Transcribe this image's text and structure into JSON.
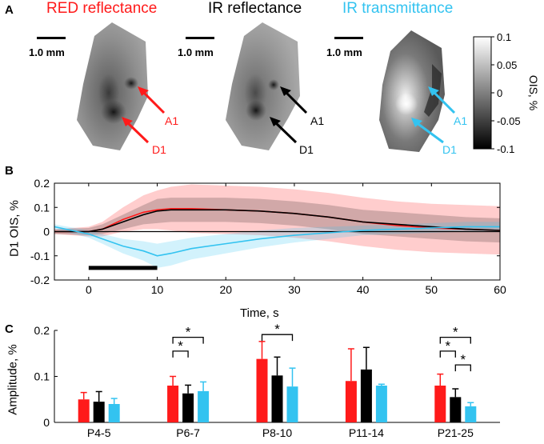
{
  "panelA": {
    "label": "A",
    "scale_text": "1.0 mm",
    "images": [
      {
        "title": "RED reflectance",
        "color": "#ff1a1a",
        "arrow_labels": [
          "A1",
          "D1"
        ]
      },
      {
        "title": "IR reflectance",
        "color": "#000000",
        "arrow_labels": [
          "A1",
          "D1"
        ]
      },
      {
        "title": "IR transmittance",
        "color": "#33c3f0",
        "arrow_labels": [
          "A1",
          "D1"
        ]
      }
    ],
    "colorbar": {
      "label": "OIS, %",
      "ticks": [
        "0.1",
        "0.05",
        "0",
        "-0.05",
        "-0.1"
      ],
      "range": [
        -0.1,
        0.1
      ]
    }
  },
  "colors": {
    "red": "#ff1a1a",
    "black": "#000000",
    "cyan": "#33c3f0"
  },
  "chart_data": [
    {
      "panel_label": "B",
      "type": "line",
      "xlabel": "Time, s",
      "ylabel": "D1 OIS, %",
      "xlim": [
        -5,
        60
      ],
      "ylim": [
        -0.2,
        0.2
      ],
      "xticks": [
        0,
        10,
        20,
        30,
        40,
        50,
        60
      ],
      "yticks": [
        -0.2,
        -0.1,
        0,
        0.1,
        0.2
      ],
      "ytick_labels": [
        "-0.2",
        "-0.1",
        "0",
        "0.1",
        "0.2"
      ],
      "stimulus_bar": [
        0,
        10
      ],
      "x": [
        -5,
        0,
        2,
        5,
        8,
        10,
        12,
        15,
        20,
        25,
        30,
        35,
        40,
        45,
        50,
        55,
        60
      ],
      "series": [
        {
          "name": "RED reflectance",
          "color": "#ff1a1a",
          "values": [
            0,
            0,
            0.01,
            0.05,
            0.08,
            0.09,
            0.095,
            0.095,
            0.09,
            0.085,
            0.075,
            0.06,
            0.04,
            0.025,
            0.015,
            0.01,
            0.005
          ],
          "err": [
            0.01,
            0.02,
            0.03,
            0.05,
            0.07,
            0.08,
            0.09,
            0.1,
            0.1,
            0.1,
            0.1,
            0.1,
            0.1,
            0.1,
            0.1,
            0.1,
            0.1
          ]
        },
        {
          "name": "IR reflectance",
          "color": "#000000",
          "values": [
            0,
            0,
            0.01,
            0.04,
            0.07,
            0.085,
            0.09,
            0.09,
            0.09,
            0.085,
            0.075,
            0.06,
            0.04,
            0.03,
            0.02,
            0.01,
            0.005
          ],
          "err": [
            0.01,
            0.015,
            0.02,
            0.03,
            0.04,
            0.05,
            0.05,
            0.05,
            0.05,
            0.05,
            0.05,
            0.05,
            0.05,
            0.05,
            0.05,
            0.05,
            0.05
          ]
        },
        {
          "name": "IR transmittance",
          "color": "#33c3f0",
          "values": [
            0.02,
            -0.01,
            -0.03,
            -0.06,
            -0.08,
            -0.1,
            -0.09,
            -0.07,
            -0.05,
            -0.03,
            -0.015,
            -0.005,
            0.005,
            0.01,
            0.015,
            0.02,
            0.02
          ],
          "err": [
            0.01,
            0.015,
            0.02,
            0.03,
            0.04,
            0.05,
            0.05,
            0.045,
            0.04,
            0.035,
            0.03,
            0.025,
            0.02,
            0.02,
            0.02,
            0.02,
            0.02
          ]
        }
      ]
    },
    {
      "panel_label": "C",
      "type": "bar",
      "xlabel": "",
      "ylabel": "Amplitude, %",
      "ylim": [
        0,
        0.2
      ],
      "yticks": [
        0,
        0.1,
        0.2
      ],
      "ytick_labels": [
        "0",
        "0.1",
        "0.2"
      ],
      "categories": [
        "P4-5",
        "P6-7",
        "P8-10",
        "P11-14",
        "P21-25"
      ],
      "series": [
        {
          "name": "RED reflectance",
          "color": "#ff1a1a",
          "values": [
            0.05,
            0.08,
            0.138,
            0.09,
            0.08
          ],
          "err": [
            0.015,
            0.02,
            0.038,
            0.07,
            0.025
          ]
        },
        {
          "name": "IR reflectance",
          "color": "#000000",
          "values": [
            0.045,
            0.063,
            0.102,
            0.115,
            0.055
          ],
          "err": [
            0.022,
            0.018,
            0.04,
            0.048,
            0.018
          ]
        },
        {
          "name": "IR transmittance",
          "color": "#33c3f0",
          "values": [
            0.04,
            0.068,
            0.078,
            0.08,
            0.035
          ],
          "err": [
            0.012,
            0.02,
            0.04,
            0.003,
            0.008
          ]
        }
      ],
      "significance": [
        {
          "category": "P6-7",
          "from": 0,
          "to": 2,
          "label": "*"
        },
        {
          "category": "P6-7",
          "from": 0,
          "to": 1,
          "label": "*"
        },
        {
          "category": "P8-10",
          "from": 0,
          "to": 2,
          "label": "*"
        },
        {
          "category": "P21-25",
          "from": 0,
          "to": 2,
          "label": "*"
        },
        {
          "category": "P21-25",
          "from": 0,
          "to": 1,
          "label": "*"
        },
        {
          "category": "P21-25",
          "from": 1,
          "to": 2,
          "label": "*"
        }
      ]
    }
  ]
}
